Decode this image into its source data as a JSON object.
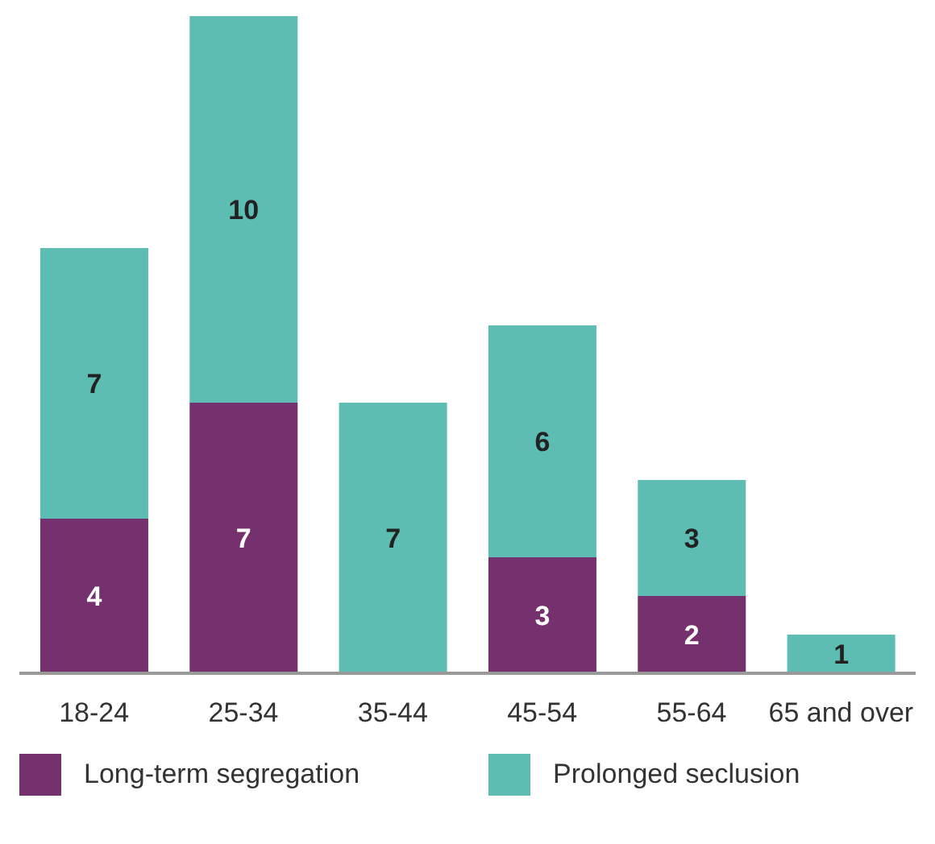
{
  "chart_data": {
    "type": "bar",
    "stacked": true,
    "data_labels": true,
    "legend": "bottom",
    "grid": false,
    "categories": [
      "18-24",
      "25-34",
      "35-44",
      "45-54",
      "55-64",
      "65 and over"
    ],
    "series": [
      {
        "name": "Long-term segregation",
        "color": "#75306e",
        "values": [
          4,
          7,
          null,
          3,
          2,
          null
        ]
      },
      {
        "name": "Prolonged seclusion",
        "color": "#5dbdb3",
        "values": [
          7,
          10,
          7,
          6,
          3,
          1
        ]
      }
    ]
  }
}
